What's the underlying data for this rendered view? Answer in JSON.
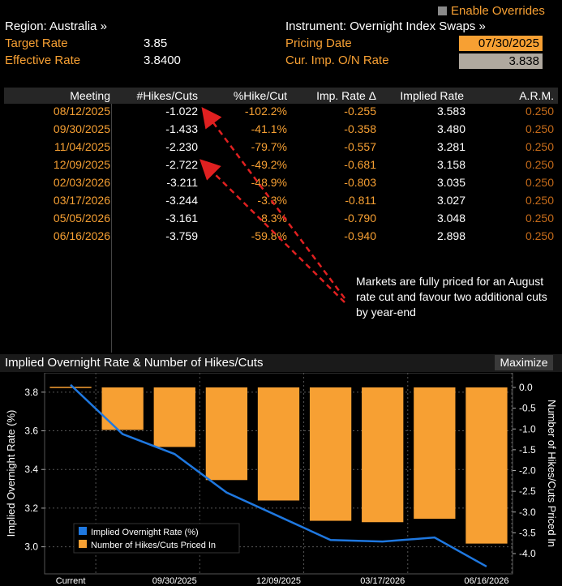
{
  "header": {
    "region_label": "Region: Australia »",
    "enable_overrides": "Enable Overrides",
    "instrument_label": "Instrument: Overnight Index Swaps »",
    "target_rate_label": "Target Rate",
    "target_rate_value": "3.85",
    "effective_rate_label": "Effective Rate",
    "effective_rate_value": "3.8400",
    "pricing_date_label": "Pricing Date",
    "pricing_date_value": "07/30/2025",
    "cur_rate_label": "Cur. Imp. O/N Rate",
    "cur_rate_value": "3.838"
  },
  "table": {
    "columns": [
      "Meeting",
      "#Hikes/Cuts",
      "%Hike/Cut",
      "Imp. Rate Δ",
      "Implied Rate",
      "A.R.M."
    ],
    "rows": [
      {
        "meeting": "08/12/2025",
        "hikes": "-1.022",
        "pct": "-102.2%",
        "delta": "-0.255",
        "implied": "3.583",
        "arm": "0.250"
      },
      {
        "meeting": "09/30/2025",
        "hikes": "-1.433",
        "pct": "-41.1%",
        "delta": "-0.358",
        "implied": "3.480",
        "arm": "0.250"
      },
      {
        "meeting": "11/04/2025",
        "hikes": "-2.230",
        "pct": "-79.7%",
        "delta": "-0.557",
        "implied": "3.281",
        "arm": "0.250"
      },
      {
        "meeting": "12/09/2025",
        "hikes": "-2.722",
        "pct": "-49.2%",
        "delta": "-0.681",
        "implied": "3.158",
        "arm": "0.250"
      },
      {
        "meeting": "02/03/2026",
        "hikes": "-3.211",
        "pct": "-48.9%",
        "delta": "-0.803",
        "implied": "3.035",
        "arm": "0.250"
      },
      {
        "meeting": "03/17/2026",
        "hikes": "-3.244",
        "pct": "-3.3%",
        "delta": "-0.811",
        "implied": "3.027",
        "arm": "0.250"
      },
      {
        "meeting": "05/05/2026",
        "hikes": "-3.161",
        "pct": "8.3%",
        "delta": "-0.790",
        "implied": "3.048",
        "arm": "0.250"
      },
      {
        "meeting": "06/16/2026",
        "hikes": "-3.759",
        "pct": "-59.8%",
        "delta": "-0.940",
        "implied": "2.898",
        "arm": "0.250"
      }
    ]
  },
  "annotation": "Markets are fully priced for an August rate cut and favour two additional cuts by year-end",
  "chart_header": {
    "title": "Implied Overnight Rate & Number of Hikes/Cuts",
    "maximize": "Maximize"
  },
  "colors": {
    "orange": "#f7a033",
    "line_blue": "#1f78e0",
    "arrow_red": "#e02020"
  },
  "chart_data": {
    "type": "bar",
    "categories": [
      "Current",
      "08/12/2025",
      "09/30/2025",
      "11/04/2025",
      "12/09/2025",
      "02/03/2026",
      "03/17/2026",
      "05/05/2026",
      "06/16/2026"
    ],
    "x_tick_labels": [
      "Current",
      "09/30/2025",
      "12/09/2025",
      "03/17/2026",
      "06/16/2026"
    ],
    "series": [
      {
        "name": "Implied Overnight Rate (%)",
        "type": "line",
        "axis": "left",
        "values": [
          3.838,
          3.583,
          3.48,
          3.281,
          3.158,
          3.035,
          3.027,
          3.048,
          2.898
        ]
      },
      {
        "name": "Number of Hikes/Cuts Priced In",
        "type": "bar",
        "axis": "right",
        "values": [
          0,
          -1.022,
          -1.433,
          -2.23,
          -2.722,
          -3.211,
          -3.244,
          -3.161,
          -3.759
        ]
      }
    ],
    "ylabel": "Implied Overnight Rate (%)",
    "y2label": "Number of Hikes/Cuts Priced In",
    "ylim": [
      2.86,
      3.9
    ],
    "y_ticks": [
      "3.8",
      "3.6",
      "3.4",
      "3.2",
      "3.0"
    ],
    "y2lim": [
      -4.0,
      0.0
    ],
    "y2_ticks": [
      "0.0",
      "-0.5",
      "-1.0",
      "-1.5",
      "-2.0",
      "-2.5",
      "-3.0",
      "-3.5",
      "-4.0"
    ],
    "legend_placement": "bottom-left",
    "grid": true
  }
}
